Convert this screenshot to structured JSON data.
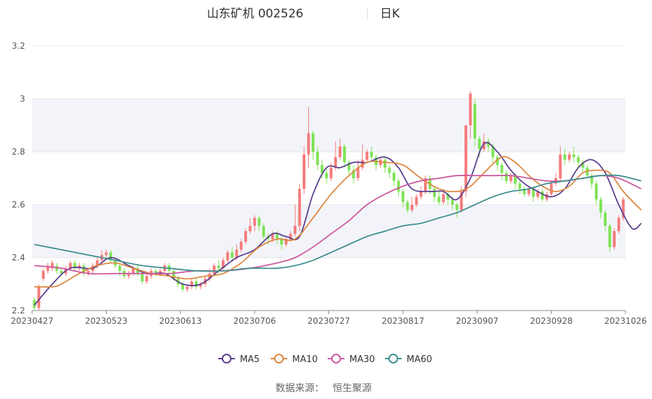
{
  "header": {
    "stock_name": "山东矿机 002526",
    "period": "日K"
  },
  "footer": {
    "source_label": "数据来源：",
    "source_value": "恒生聚源"
  },
  "colors": {
    "up": "#f47c7c",
    "down": "#7fe356",
    "axis": "#8a8a8a",
    "grid": "#e6e6e6",
    "band": "#f3f4fa",
    "tick_text": "#555555"
  },
  "chart_data": {
    "type": "candlestick",
    "x_tick_labels": [
      "20230427",
      "20230523",
      "20230613",
      "20230706",
      "20230727",
      "20230817",
      "20230907",
      "20230928",
      "20231026"
    ],
    "y_ticks": [
      2.2,
      2.4,
      2.6,
      2.8,
      3,
      3.2
    ],
    "y_tick_labels": [
      "2.2",
      "2.4",
      "2.6",
      "2.8",
      "3",
      "3.2"
    ],
    "ylim": [
      2.2,
      3.2
    ],
    "legend_position": "bottom-center",
    "candles": [
      [
        2.24,
        2.21,
        2.2,
        2.25
      ],
      [
        2.21,
        2.29,
        2.2,
        2.3
      ],
      [
        2.32,
        2.35,
        2.31,
        2.36
      ],
      [
        2.35,
        2.37,
        2.34,
        2.38
      ],
      [
        2.36,
        2.38,
        2.35,
        2.39
      ],
      [
        2.37,
        2.35,
        2.34,
        2.38
      ],
      [
        2.35,
        2.34,
        2.33,
        2.36
      ],
      [
        2.34,
        2.36,
        2.33,
        2.37
      ],
      [
        2.36,
        2.38,
        2.35,
        2.39
      ],
      [
        2.38,
        2.36,
        2.35,
        2.39
      ],
      [
        2.36,
        2.37,
        2.35,
        2.38
      ],
      [
        2.37,
        2.34,
        2.33,
        2.38
      ],
      [
        2.34,
        2.35,
        2.33,
        2.36
      ],
      [
        2.35,
        2.37,
        2.34,
        2.38
      ],
      [
        2.37,
        2.39,
        2.36,
        2.4
      ],
      [
        2.39,
        2.41,
        2.38,
        2.43
      ],
      [
        2.41,
        2.42,
        2.4,
        2.43
      ],
      [
        2.42,
        2.39,
        2.38,
        2.43
      ],
      [
        2.39,
        2.37,
        2.36,
        2.4
      ],
      [
        2.37,
        2.35,
        2.33,
        2.38
      ],
      [
        2.35,
        2.33,
        2.32,
        2.36
      ],
      [
        2.33,
        2.34,
        2.32,
        2.35
      ],
      [
        2.34,
        2.36,
        2.33,
        2.37
      ],
      [
        2.36,
        2.34,
        2.33,
        2.37
      ],
      [
        2.34,
        2.31,
        2.3,
        2.35
      ],
      [
        2.31,
        2.33,
        2.3,
        2.34
      ],
      [
        2.33,
        2.35,
        2.32,
        2.36
      ],
      [
        2.35,
        2.34,
        2.33,
        2.36
      ],
      [
        2.34,
        2.35,
        2.33,
        2.36
      ],
      [
        2.35,
        2.37,
        2.34,
        2.38
      ],
      [
        2.37,
        2.35,
        2.34,
        2.38
      ],
      [
        2.35,
        2.32,
        2.31,
        2.36
      ],
      [
        2.32,
        2.3,
        2.29,
        2.33
      ],
      [
        2.3,
        2.28,
        2.27,
        2.31
      ],
      [
        2.28,
        2.29,
        2.27,
        2.3
      ],
      [
        2.29,
        2.31,
        2.28,
        2.32
      ],
      [
        2.31,
        2.29,
        2.28,
        2.32
      ],
      [
        2.29,
        2.3,
        2.28,
        2.31
      ],
      [
        2.3,
        2.32,
        2.29,
        2.33
      ],
      [
        2.32,
        2.34,
        2.31,
        2.36
      ],
      [
        2.34,
        2.37,
        2.33,
        2.38
      ],
      [
        2.37,
        2.36,
        2.34,
        2.39
      ],
      [
        2.36,
        2.39,
        2.35,
        2.4
      ],
      [
        2.39,
        2.42,
        2.38,
        2.43
      ],
      [
        2.42,
        2.4,
        2.39,
        2.44
      ],
      [
        2.4,
        2.43,
        2.39,
        2.45
      ],
      [
        2.43,
        2.46,
        2.42,
        2.47
      ],
      [
        2.46,
        2.5,
        2.45,
        2.51
      ],
      [
        2.5,
        2.52,
        2.49,
        2.55
      ],
      [
        2.52,
        2.55,
        2.5,
        2.56
      ],
      [
        2.55,
        2.52,
        2.5,
        2.56
      ],
      [
        2.52,
        2.48,
        2.47,
        2.53
      ],
      [
        2.48,
        2.47,
        2.45,
        2.49
      ],
      [
        2.47,
        2.49,
        2.46,
        2.5
      ],
      [
        2.49,
        2.47,
        2.45,
        2.5
      ],
      [
        2.47,
        2.45,
        2.43,
        2.48
      ],
      [
        2.45,
        2.47,
        2.44,
        2.48
      ],
      [
        2.47,
        2.49,
        2.46,
        2.5
      ],
      [
        2.49,
        2.52,
        2.48,
        2.6
      ],
      [
        2.52,
        2.66,
        2.5,
        2.68
      ],
      [
        2.66,
        2.79,
        2.64,
        2.82
      ],
      [
        2.79,
        2.87,
        2.74,
        2.97
      ],
      [
        2.87,
        2.8,
        2.77,
        2.88
      ],
      [
        2.8,
        2.75,
        2.73,
        2.82
      ],
      [
        2.75,
        2.72,
        2.7,
        2.77
      ],
      [
        2.72,
        2.7,
        2.68,
        2.74
      ],
      [
        2.7,
        2.74,
        2.69,
        2.76
      ],
      [
        2.74,
        2.78,
        2.73,
        2.84
      ],
      [
        2.78,
        2.82,
        2.77,
        2.85
      ],
      [
        2.82,
        2.76,
        2.74,
        2.83
      ],
      [
        2.76,
        2.73,
        2.71,
        2.77
      ],
      [
        2.73,
        2.7,
        2.68,
        2.75
      ],
      [
        2.7,
        2.74,
        2.69,
        2.77
      ],
      [
        2.74,
        2.77,
        2.73,
        2.83
      ],
      [
        2.77,
        2.8,
        2.76,
        2.81
      ],
      [
        2.8,
        2.78,
        2.77,
        2.82
      ],
      [
        2.78,
        2.75,
        2.73,
        2.79
      ],
      [
        2.75,
        2.77,
        2.74,
        2.78
      ],
      [
        2.77,
        2.74,
        2.72,
        2.78
      ],
      [
        2.74,
        2.72,
        2.7,
        2.75
      ],
      [
        2.72,
        2.69,
        2.67,
        2.73
      ],
      [
        2.69,
        2.65,
        2.63,
        2.7
      ],
      [
        2.65,
        2.61,
        2.59,
        2.66
      ],
      [
        2.61,
        2.58,
        2.57,
        2.62
      ],
      [
        2.58,
        2.6,
        2.57,
        2.63
      ],
      [
        2.6,
        2.63,
        2.59,
        2.64
      ],
      [
        2.63,
        2.65,
        2.62,
        2.67
      ],
      [
        2.65,
        2.7,
        2.64,
        2.71
      ],
      [
        2.7,
        2.66,
        2.64,
        2.71
      ],
      [
        2.66,
        2.63,
        2.61,
        2.67
      ],
      [
        2.63,
        2.61,
        2.6,
        2.65
      ],
      [
        2.61,
        2.64,
        2.6,
        2.66
      ],
      [
        2.64,
        2.62,
        2.6,
        2.65
      ],
      [
        2.62,
        2.6,
        2.58,
        2.63
      ],
      [
        2.6,
        2.58,
        2.55,
        2.61
      ],
      [
        2.58,
        2.65,
        2.57,
        2.67
      ],
      [
        2.65,
        2.9,
        2.63,
        2.9
      ],
      [
        2.9,
        3.02,
        2.85,
        3.03
      ],
      [
        2.98,
        2.85,
        2.82,
        3.0
      ],
      [
        2.85,
        2.81,
        2.78,
        2.86
      ],
      [
        2.81,
        2.84,
        2.8,
        2.87
      ],
      [
        2.84,
        2.82,
        2.8,
        2.85
      ],
      [
        2.82,
        2.78,
        2.76,
        2.83
      ],
      [
        2.78,
        2.75,
        2.73,
        2.79
      ],
      [
        2.75,
        2.72,
        2.69,
        2.76
      ],
      [
        2.72,
        2.69,
        2.68,
        2.73
      ],
      [
        2.69,
        2.71,
        2.68,
        2.72
      ],
      [
        2.71,
        2.68,
        2.66,
        2.72
      ],
      [
        2.68,
        2.66,
        2.64,
        2.69
      ],
      [
        2.66,
        2.64,
        2.63,
        2.67
      ],
      [
        2.64,
        2.66,
        2.63,
        2.67
      ],
      [
        2.66,
        2.63,
        2.61,
        2.67
      ],
      [
        2.63,
        2.65,
        2.62,
        2.66
      ],
      [
        2.65,
        2.62,
        2.61,
        2.66
      ],
      [
        2.62,
        2.64,
        2.61,
        2.65
      ],
      [
        2.64,
        2.68,
        2.63,
        2.69
      ],
      [
        2.68,
        2.7,
        2.67,
        2.72
      ],
      [
        2.7,
        2.79,
        2.69,
        2.82
      ],
      [
        2.79,
        2.77,
        2.75,
        2.81
      ],
      [
        2.77,
        2.79,
        2.76,
        2.8
      ],
      [
        2.79,
        2.78,
        2.76,
        2.82
      ],
      [
        2.78,
        2.76,
        2.74,
        2.79
      ],
      [
        2.76,
        2.74,
        2.72,
        2.77
      ],
      [
        2.74,
        2.71,
        2.7,
        2.75
      ],
      [
        2.71,
        2.68,
        2.66,
        2.72
      ],
      [
        2.68,
        2.62,
        2.6,
        2.69
      ],
      [
        2.62,
        2.57,
        2.55,
        2.63
      ],
      [
        2.57,
        2.52,
        2.5,
        2.58
      ],
      [
        2.52,
        2.44,
        2.42,
        2.53
      ],
      [
        2.44,
        2.5,
        2.43,
        2.51
      ],
      [
        2.5,
        2.55,
        2.49,
        2.56
      ],
      [
        2.55,
        2.62,
        2.54,
        2.63
      ]
    ],
    "series": [
      {
        "name": "MA5",
        "color": "#5b3f8e",
        "points": [
          [
            0,
            2.22
          ],
          [
            4,
            2.3
          ],
          [
            8,
            2.36
          ],
          [
            13,
            2.36
          ],
          [
            17,
            2.4
          ],
          [
            21,
            2.37
          ],
          [
            25,
            2.34
          ],
          [
            29,
            2.34
          ],
          [
            33,
            2.3
          ],
          [
            37,
            2.3
          ],
          [
            41,
            2.35
          ],
          [
            45,
            2.4
          ],
          [
            49,
            2.43
          ],
          [
            53,
            2.49
          ],
          [
            56,
            2.48
          ],
          [
            59,
            2.48
          ],
          [
            62,
            2.64
          ],
          [
            65,
            2.74
          ],
          [
            68,
            2.74
          ],
          [
            71,
            2.76
          ],
          [
            74,
            2.76
          ],
          [
            78,
            2.78
          ],
          [
            81,
            2.74
          ],
          [
            84,
            2.66
          ],
          [
            88,
            2.65
          ],
          [
            91,
            2.65
          ],
          [
            94,
            2.62
          ],
          [
            97,
            2.7
          ],
          [
            100,
            2.83
          ],
          [
            103,
            2.8
          ],
          [
            106,
            2.73
          ],
          [
            109,
            2.68
          ],
          [
            112,
            2.65
          ],
          [
            115,
            2.63
          ],
          [
            118,
            2.66
          ],
          [
            121,
            2.74
          ],
          [
            124,
            2.77
          ],
          [
            127,
            2.72
          ],
          [
            130,
            2.6
          ],
          [
            133,
            2.51
          ],
          [
            135,
            2.53
          ]
        ]
      },
      {
        "name": "MA10",
        "color": "#dd8840",
        "points": [
          [
            0,
            2.29
          ],
          [
            4,
            2.29
          ],
          [
            6,
            2.3
          ],
          [
            10,
            2.34
          ],
          [
            14,
            2.37
          ],
          [
            18,
            2.38
          ],
          [
            22,
            2.36
          ],
          [
            26,
            2.34
          ],
          [
            30,
            2.33
          ],
          [
            34,
            2.32
          ],
          [
            38,
            2.33
          ],
          [
            42,
            2.34
          ],
          [
            46,
            2.38
          ],
          [
            50,
            2.44
          ],
          [
            54,
            2.47
          ],
          [
            58,
            2.47
          ],
          [
            62,
            2.55
          ],
          [
            66,
            2.64
          ],
          [
            70,
            2.71
          ],
          [
            74,
            2.76
          ],
          [
            78,
            2.76
          ],
          [
            82,
            2.75
          ],
          [
            86,
            2.7
          ],
          [
            90,
            2.66
          ],
          [
            94,
            2.65
          ],
          [
            97,
            2.67
          ],
          [
            100,
            2.72
          ],
          [
            104,
            2.78
          ],
          [
            107,
            2.76
          ],
          [
            110,
            2.71
          ],
          [
            113,
            2.67
          ],
          [
            116,
            2.65
          ],
          [
            119,
            2.67
          ],
          [
            122,
            2.72
          ],
          [
            125,
            2.73
          ],
          [
            128,
            2.72
          ],
          [
            131,
            2.65
          ],
          [
            135,
            2.58
          ]
        ]
      },
      {
        "name": "MA30",
        "color": "#cc5aa0",
        "points": [
          [
            0,
            2.37
          ],
          [
            6,
            2.36
          ],
          [
            12,
            2.34
          ],
          [
            18,
            2.34
          ],
          [
            24,
            2.34
          ],
          [
            30,
            2.34
          ],
          [
            36,
            2.35
          ],
          [
            42,
            2.35
          ],
          [
            48,
            2.36
          ],
          [
            54,
            2.38
          ],
          [
            58,
            2.4
          ],
          [
            62,
            2.44
          ],
          [
            66,
            2.49
          ],
          [
            70,
            2.54
          ],
          [
            74,
            2.6
          ],
          [
            78,
            2.64
          ],
          [
            82,
            2.67
          ],
          [
            86,
            2.69
          ],
          [
            90,
            2.7
          ],
          [
            94,
            2.71
          ],
          [
            98,
            2.71
          ],
          [
            102,
            2.71
          ],
          [
            106,
            2.71
          ],
          [
            110,
            2.7
          ],
          [
            114,
            2.69
          ],
          [
            118,
            2.69
          ],
          [
            122,
            2.7
          ],
          [
            126,
            2.71
          ],
          [
            130,
            2.7
          ],
          [
            135,
            2.66
          ]
        ]
      },
      {
        "name": "MA60",
        "color": "#3f8f8f",
        "points": [
          [
            0,
            2.45
          ],
          [
            6,
            2.43
          ],
          [
            12,
            2.41
          ],
          [
            18,
            2.39
          ],
          [
            24,
            2.37
          ],
          [
            30,
            2.36
          ],
          [
            36,
            2.35
          ],
          [
            42,
            2.35
          ],
          [
            48,
            2.36
          ],
          [
            54,
            2.36
          ],
          [
            58,
            2.37
          ],
          [
            62,
            2.39
          ],
          [
            66,
            2.42
          ],
          [
            70,
            2.45
          ],
          [
            74,
            2.48
          ],
          [
            78,
            2.5
          ],
          [
            82,
            2.52
          ],
          [
            86,
            2.53
          ],
          [
            90,
            2.55
          ],
          [
            94,
            2.57
          ],
          [
            98,
            2.6
          ],
          [
            102,
            2.63
          ],
          [
            106,
            2.65
          ],
          [
            110,
            2.66
          ],
          [
            114,
            2.68
          ],
          [
            118,
            2.69
          ],
          [
            122,
            2.7
          ],
          [
            126,
            2.71
          ],
          [
            130,
            2.71
          ],
          [
            135,
            2.69
          ]
        ]
      }
    ]
  }
}
